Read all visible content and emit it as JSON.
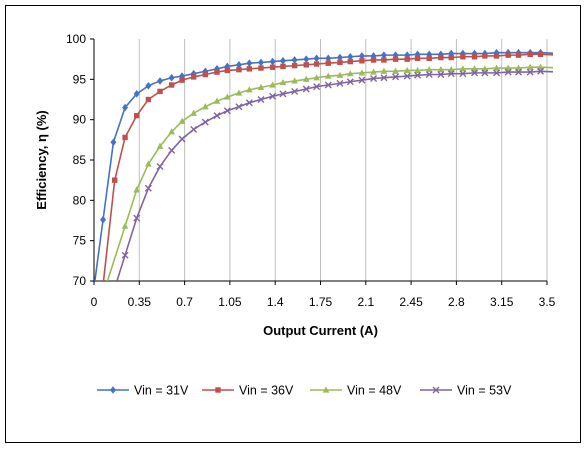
{
  "chart_data": {
    "type": "line",
    "title": "",
    "xlabel": "Output Current (A)",
    "ylabel": "Efficiency, η (%)",
    "xlim": [
      0,
      3.5
    ],
    "ylim": [
      70,
      100
    ],
    "xticks": [
      0,
      0.35,
      0.7,
      1.05,
      1.4,
      1.75,
      2.1,
      2.45,
      2.8,
      3.15,
      3.5
    ],
    "xtick_labels": [
      "0",
      "0.35",
      "0.7",
      "1.05",
      "1.4",
      "1.75",
      "2.1",
      "2.45",
      "2.8",
      "3.15",
      "3.5"
    ],
    "yticks": [
      70,
      75,
      80,
      85,
      90,
      95,
      100
    ],
    "ytick_labels": [
      "70",
      "75",
      "80",
      "85",
      "90",
      "95",
      "100"
    ],
    "grid": "vertical",
    "legend_position": "bottom",
    "series": [
      {
        "name": "Vin = 31V",
        "color": "#4472C4",
        "marker": "diamond",
        "x": [
          0.07,
          0.15,
          0.24,
          0.33,
          0.42,
          0.51,
          0.6,
          0.68,
          0.77,
          0.86,
          0.95,
          1.03,
          1.12,
          1.2,
          1.29,
          1.38,
          1.46,
          1.55,
          1.64,
          1.72,
          1.81,
          1.9,
          1.98,
          2.07,
          2.16,
          2.24,
          2.33,
          2.42,
          2.5,
          2.59,
          2.68,
          2.76,
          2.85,
          2.94,
          3.02,
          3.11,
          3.2,
          3.28,
          3.37,
          3.45
        ],
        "y": [
          77.6,
          87.2,
          91.5,
          93.2,
          94.2,
          94.8,
          95.2,
          95.4,
          95.7,
          96.0,
          96.3,
          96.6,
          96.8,
          97.0,
          97.1,
          97.2,
          97.3,
          97.4,
          97.5,
          97.6,
          97.6,
          97.7,
          97.8,
          97.9,
          97.9,
          98.0,
          98.0,
          98.0,
          98.1,
          98.1,
          98.1,
          98.2,
          98.2,
          98.2,
          98.2,
          98.3,
          98.3,
          98.3,
          98.3,
          98.3
        ]
      },
      {
        "name": "Vin = 36V",
        "color": "#C0504D",
        "marker": "square",
        "x": [
          0.07,
          0.16,
          0.24,
          0.33,
          0.42,
          0.51,
          0.6,
          0.68,
          0.77,
          0.86,
          0.95,
          1.03,
          1.12,
          1.2,
          1.29,
          1.38,
          1.46,
          1.55,
          1.64,
          1.72,
          1.81,
          1.9,
          1.98,
          2.07,
          2.16,
          2.24,
          2.33,
          2.42,
          2.5,
          2.59,
          2.68,
          2.76,
          2.85,
          2.94,
          3.02,
          3.11,
          3.2,
          3.28,
          3.37,
          3.45
        ],
        "y": [
          69.5,
          82.5,
          87.8,
          90.5,
          92.5,
          93.5,
          94.3,
          94.9,
          95.3,
          95.6,
          95.9,
          96.1,
          96.2,
          96.3,
          96.4,
          96.5,
          96.6,
          96.7,
          96.8,
          96.9,
          97.0,
          97.1,
          97.2,
          97.3,
          97.4,
          97.4,
          97.5,
          97.5,
          97.6,
          97.6,
          97.7,
          97.7,
          97.8,
          97.8,
          97.9,
          97.9,
          98.0,
          98.0,
          98.1,
          98.1
        ]
      },
      {
        "name": "Vin = 48V",
        "color": "#9BBB59",
        "marker": "triangle",
        "x": [
          0.24,
          0.33,
          0.42,
          0.51,
          0.6,
          0.68,
          0.77,
          0.86,
          0.95,
          1.03,
          1.12,
          1.2,
          1.29,
          1.38,
          1.46,
          1.55,
          1.64,
          1.72,
          1.81,
          1.9,
          1.98,
          2.07,
          2.16,
          2.24,
          2.33,
          2.42,
          2.5,
          2.59,
          2.68,
          2.76,
          2.85,
          2.94,
          3.02,
          3.11,
          3.2,
          3.28,
          3.37,
          3.45
        ],
        "y": [
          76.8,
          81.3,
          84.5,
          86.7,
          88.5,
          89.8,
          90.8,
          91.6,
          92.3,
          92.8,
          93.3,
          93.7,
          94.0,
          94.3,
          94.6,
          94.8,
          95.0,
          95.2,
          95.4,
          95.5,
          95.7,
          95.8,
          95.9,
          96.0,
          96.0,
          96.1,
          96.1,
          96.2,
          96.2,
          96.2,
          96.3,
          96.3,
          96.3,
          96.4,
          96.4,
          96.4,
          96.5,
          96.5
        ]
      },
      {
        "name": "Vin = 53V",
        "color": "#8064A2",
        "marker": "x",
        "x": [
          0.24,
          0.33,
          0.42,
          0.51,
          0.6,
          0.68,
          0.77,
          0.86,
          0.95,
          1.03,
          1.12,
          1.2,
          1.29,
          1.38,
          1.46,
          1.55,
          1.64,
          1.72,
          1.81,
          1.9,
          1.98,
          2.07,
          2.16,
          2.24,
          2.33,
          2.42,
          2.5,
          2.59,
          2.68,
          2.76,
          2.85,
          2.94,
          3.02,
          3.11,
          3.2,
          3.28,
          3.37,
          3.45
        ],
        "y": [
          73.2,
          77.8,
          81.5,
          84.2,
          86.2,
          87.6,
          88.8,
          89.7,
          90.5,
          91.1,
          91.6,
          92.1,
          92.5,
          92.9,
          93.2,
          93.5,
          93.8,
          94.1,
          94.3,
          94.5,
          94.7,
          94.9,
          95.1,
          95.2,
          95.3,
          95.4,
          95.5,
          95.6,
          95.6,
          95.7,
          95.7,
          95.8,
          95.8,
          95.8,
          95.9,
          95.9,
          95.9,
          96.0
        ]
      }
    ]
  }
}
